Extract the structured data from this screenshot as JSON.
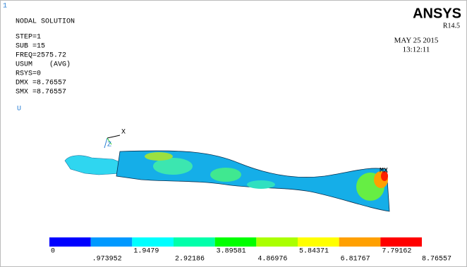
{
  "header": {
    "window_number": "1",
    "title": "NODAL SOLUTION",
    "product": "ANSYS",
    "release": "R14.5",
    "date": "MAY 25 2015",
    "time": "13:12:11"
  },
  "info": {
    "lines": [
      "STEP=1",
      "SUB =15",
      "FREQ=2575.72"
    ],
    "result": "USUM",
    "averaging": "(AVG)",
    "more_lines": [
      "RSYS=0",
      "DMX =8.76557",
      "SMX =8.76557"
    ],
    "label": "U"
  },
  "triad": {
    "x": "X",
    "z": "Z"
  },
  "max_marker": "MX",
  "legend": {
    "colors": [
      "#0000ff",
      "#0099ff",
      "#00ffff",
      "#00ffaa",
      "#00ff00",
      "#aaff00",
      "#ffff00",
      "#ffa000",
      "#ff0000"
    ],
    "labels": [
      "0",
      ".973952",
      "1.9479",
      "2.92186",
      "3.89581",
      "4.86976",
      "5.84371",
      "6.81767",
      "7.79162",
      "8.76557"
    ]
  }
}
